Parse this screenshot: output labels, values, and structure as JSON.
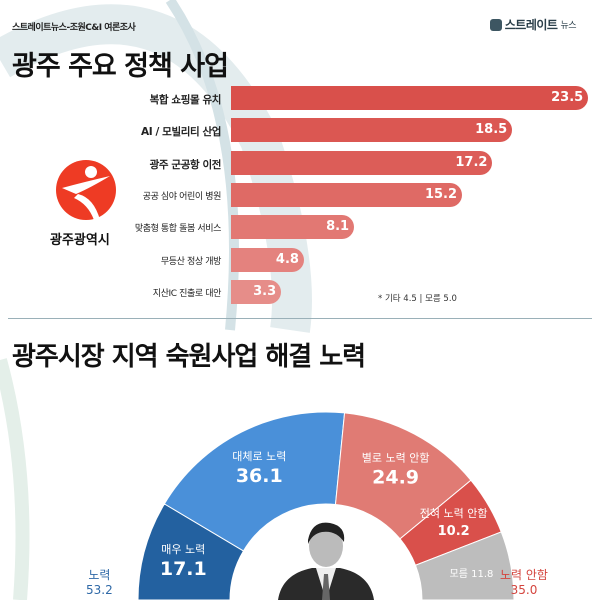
{
  "header": {
    "source": "스트레이트뉴스-조원C&I 여론조사",
    "brand": "스트레이트",
    "brand_suffix": "뉴스"
  },
  "logo": {
    "city_name": "광주광역시"
  },
  "colors": {
    "bar_top": "#d9504b",
    "bar_bottom": "#e6908c",
    "very_effort": "#2361a0",
    "mostly_effort": "#4a90d9",
    "not_much": "#e07b74",
    "not_at_all": "#d9504b",
    "unknown": "#bdbdbd"
  },
  "chart_data": [
    {
      "type": "bar",
      "title": "광주 주요 정책 사업",
      "categories": [
        "복합 쇼핑몰 유치",
        "AI / 모빌리티 산업",
        "광주 군공항 이전",
        "공공 심야 어린이 병원",
        "맞춤형 통합 돌봄 서비스",
        "무등산 정상 개방",
        "지산IC 진출로 대안"
      ],
      "values": [
        23.5,
        18.5,
        17.2,
        15.2,
        8.1,
        4.8,
        3.3
      ],
      "value_labels": [
        "23.5",
        "18.5",
        "17.2",
        "15.2",
        "8.1",
        "4.8",
        "3.3"
      ],
      "note": "* 기타 4.5 | 모름 5.0",
      "orientation": "horizontal"
    },
    {
      "type": "pie",
      "subtype": "half-donut",
      "title": "광주시장 지역 숙원사업 해결 노력",
      "slices": [
        {
          "name": "매우 노력",
          "value": 17.1,
          "label": "17.1",
          "color": "#2361a0"
        },
        {
          "name": "대체로 노력",
          "value": 36.1,
          "label": "36.1",
          "color": "#4a90d9"
        },
        {
          "name": "별로 노력 안함",
          "value": 24.9,
          "label": "24.9",
          "color": "#e07b74"
        },
        {
          "name": "전혀 노력 안함",
          "value": 10.2,
          "label": "10.2",
          "color": "#d9504b"
        },
        {
          "name": "모름",
          "value": 11.8,
          "label": "11.8",
          "color": "#bdbdbd"
        }
      ],
      "summary": {
        "left_label": "노력",
        "left_value": "53.2",
        "right_label": "노력 안함",
        "right_value": "35.0"
      }
    }
  ]
}
